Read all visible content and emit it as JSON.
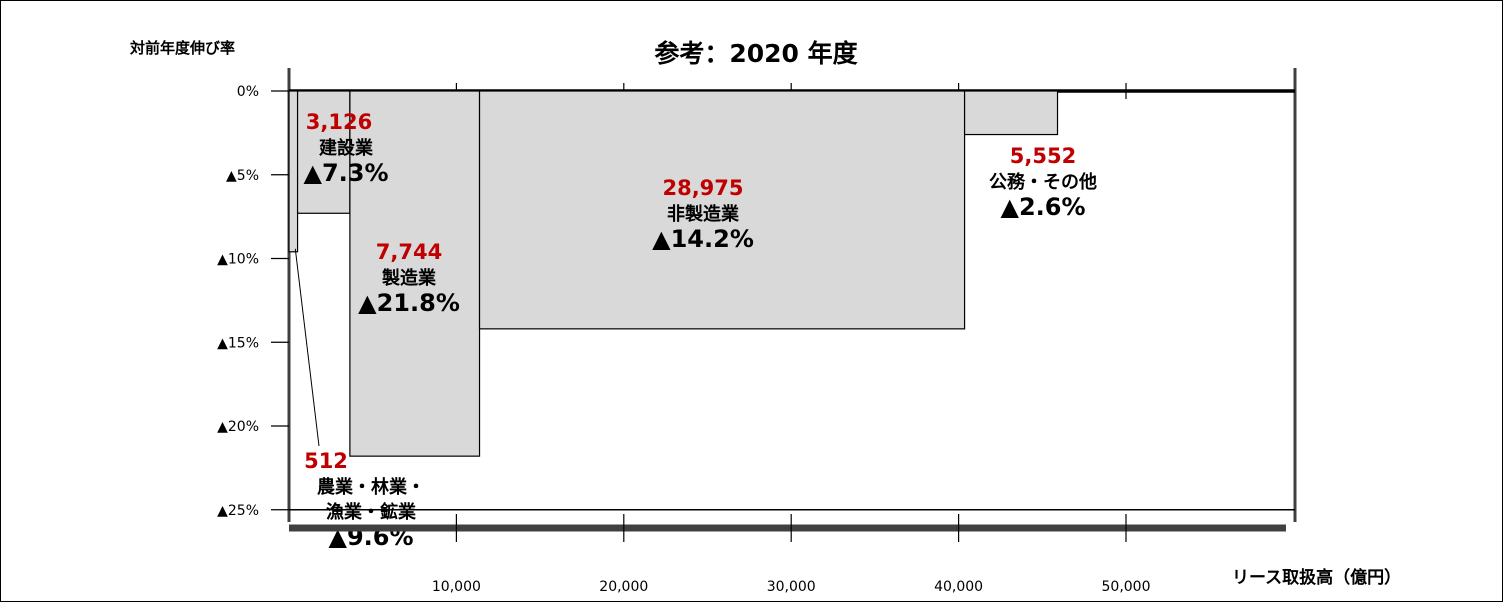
{
  "chart_data": {
    "type": "bar",
    "variant": "variable-width (marimekko)",
    "title": "参考：2020 年度",
    "ylabel": "対前年度伸び率",
    "xlabel": "リース取扱高（億円）",
    "x_ticks": [
      "10,000",
      "20,000",
      "30,000",
      "40,000",
      "50,000"
    ],
    "x_tick_values": [
      10000,
      20000,
      30000,
      40000,
      50000
    ],
    "y_ticks": [
      "0%",
      "▲5%",
      "▲10%",
      "▲15%",
      "▲20%",
      "▲25%"
    ],
    "y_tick_values": [
      0,
      -5,
      -10,
      -15,
      -20,
      -25
    ],
    "xlim": [
      0,
      60000
    ],
    "ylim": [
      -25,
      0
    ],
    "value_color": "#c00000",
    "bar_fill": "#d9d9d9",
    "segments": [
      {
        "value_label": "512",
        "value": 512,
        "name_lines": [
          "農業・林業・",
          "漁業・鉱業"
        ],
        "growth_label": "▲9.6%",
        "growth": -9.6
      },
      {
        "value_label": "3,126",
        "value": 3126,
        "name_lines": [
          "建設業"
        ],
        "growth_label": "▲7.3%",
        "growth": -7.3
      },
      {
        "value_label": "7,744",
        "value": 7744,
        "name_lines": [
          "製造業"
        ],
        "growth_label": "▲21.8%",
        "growth": -21.8
      },
      {
        "value_label": "28,975",
        "value": 28975,
        "name_lines": [
          "非製造業"
        ],
        "growth_label": "▲14.2%",
        "growth": -14.2
      },
      {
        "value_label": "5,552",
        "value": 5552,
        "name_lines": [
          "公務・その他"
        ],
        "growth_label": "▲2.6%",
        "growth": -2.6
      }
    ]
  }
}
